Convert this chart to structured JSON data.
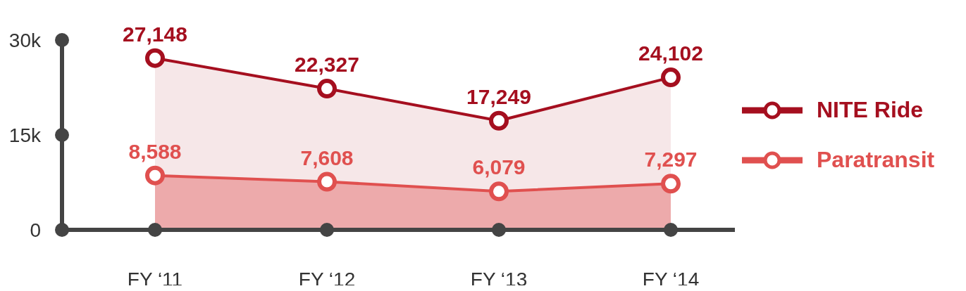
{
  "chart_data": {
    "type": "area",
    "categories": [
      "FY ‘11",
      "FY ‘12",
      "FY ‘13",
      "FY ‘14"
    ],
    "series": [
      {
        "name": "NITE Ride",
        "color": "#a50f1f",
        "values": [
          27148,
          22327,
          17249,
          24102
        ],
        "value_labels": [
          "27,148",
          "22,327",
          "17,249",
          "24,102"
        ]
      },
      {
        "name": "Paratransit",
        "color": "#e0504f",
        "values": [
          8588,
          7608,
          6079,
          7297
        ],
        "value_labels": [
          "8,588",
          "7,608",
          "6,079",
          "7,297"
        ]
      }
    ],
    "ylim": [
      0,
      30000
    ],
    "yticks": [
      0,
      {
        "value": 15000,
        "label": "15k"
      },
      {
        "value": 30000,
        "label": "30k"
      }
    ],
    "grid": false,
    "legend": "right",
    "marker": "circle",
    "line_style": "solid"
  }
}
